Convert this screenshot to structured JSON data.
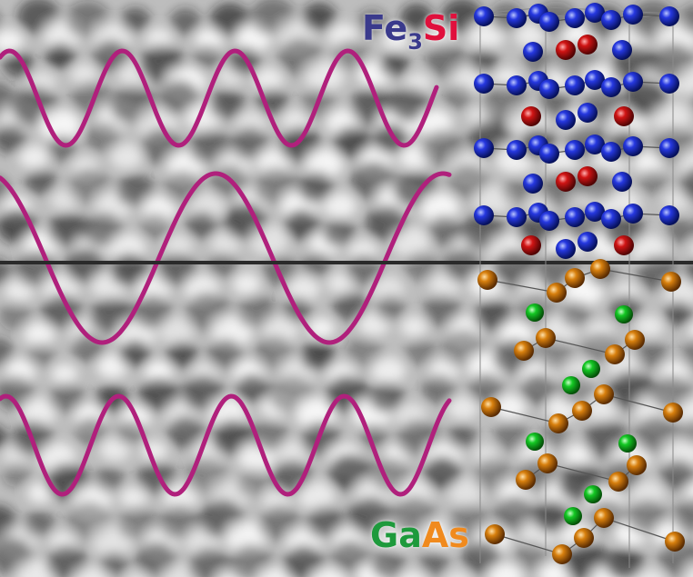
{
  "labels": {
    "top": {
      "fe": "Fe",
      "sub": "3",
      "si": "Si"
    },
    "bottom": {
      "ga": "Ga",
      "as": "As"
    }
  },
  "colors": {
    "fe_text": "#3a3a8c",
    "si_text": "#e0103c",
    "ga_text": "#1e9a3c",
    "as_text": "#f08a1e",
    "wave": "#b0207c",
    "interface_line": "#2a2a2a",
    "fe_atom": "#1f2fd0",
    "si_atom": "#cc1010",
    "ga_atom": "#10c020",
    "as_atom": "#d0780e"
  },
  "icons": {
    "background": "hrtem-lattice-image",
    "structure": "ball-and-stick-crystal-model"
  }
}
